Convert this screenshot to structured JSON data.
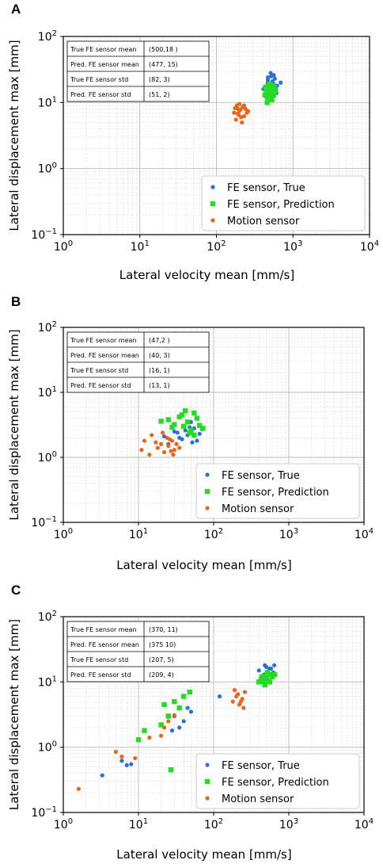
{
  "chart_data": [
    {
      "panel": "A",
      "type": "scatter",
      "xlabel": "Lateral velocity mean [mm/s]",
      "ylabel": "Lateral displacement max [mm]",
      "xscale": "log",
      "yscale": "log",
      "xlim": [
        1,
        10000
      ],
      "ylim": [
        0.1,
        100
      ],
      "grid": true,
      "legend_position": "bottom-right",
      "x_ticks": [
        {
          "base": "10",
          "exp": "0"
        },
        {
          "base": "10",
          "exp": "1"
        },
        {
          "base": "10",
          "exp": "2"
        },
        {
          "base": "10",
          "exp": "3"
        },
        {
          "base": "10",
          "exp": "4"
        }
      ],
      "y_ticks": [
        {
          "base": "10",
          "exp": "−1"
        },
        {
          "base": "10",
          "exp": "0"
        },
        {
          "base": "10",
          "exp": "1"
        },
        {
          "base": "10",
          "exp": "2"
        }
      ],
      "stats_table": [
        [
          "True FE sensor mean",
          "(500,18 )"
        ],
        [
          "Pred. FE sensor mean",
          "(477, 15)"
        ],
        [
          "True FE sensor std",
          "(82, 3)"
        ],
        [
          "Pred. FE sensor std",
          "(51, 2)"
        ]
      ],
      "series": [
        {
          "name": "FE sensor, True",
          "color": "#2a6fdb",
          "marker": "circle",
          "points": [
            [
              430,
              17
            ],
            [
              470,
              22
            ],
            [
              520,
              25
            ],
            [
              560,
              19
            ],
            [
              600,
              16
            ],
            [
              480,
              14
            ],
            [
              510,
              28
            ],
            [
              450,
              12
            ],
            [
              540,
              21
            ],
            [
              580,
              23
            ],
            [
              620,
              18
            ],
            [
              500,
              15
            ],
            [
              470,
              20
            ],
            [
              530,
              13
            ],
            [
              690,
              20
            ],
            [
              410,
              16
            ],
            [
              560,
              26
            ],
            [
              520,
              11
            ],
            [
              610,
              14
            ],
            [
              470,
              24
            ]
          ]
        },
        {
          "name": "FE sensor, Prediction",
          "color": "#22dd22",
          "marker": "square",
          "points": [
            [
              430,
              13
            ],
            [
              460,
              15
            ],
            [
              490,
              17
            ],
            [
              520,
              14
            ],
            [
              550,
              16
            ],
            [
              470,
              12
            ],
            [
              500,
              19
            ],
            [
              530,
              11
            ],
            [
              560,
              13
            ],
            [
              440,
              17
            ],
            [
              480,
              14
            ],
            [
              510,
              16
            ],
            [
              540,
              18
            ],
            [
              460,
              10
            ],
            [
              590,
              15
            ],
            [
              500,
              13
            ],
            [
              470,
              18
            ],
            [
              520,
              12
            ],
            [
              450,
              14
            ],
            [
              570,
              17
            ]
          ]
        },
        {
          "name": "Motion sensor",
          "color": "#e8661c",
          "marker": "circle",
          "points": [
            [
              170,
              7
            ],
            [
              190,
              8
            ],
            [
              210,
              6
            ],
            [
              230,
              9
            ],
            [
              200,
              7.5
            ],
            [
              180,
              5.5
            ],
            [
              220,
              8.5
            ],
            [
              250,
              7
            ],
            [
              195,
              6.5
            ],
            [
              240,
              8
            ],
            [
              185,
              9
            ],
            [
              215,
              5
            ],
            [
              205,
              7.8
            ],
            [
              175,
              8.2
            ],
            [
              230,
              6.2
            ],
            [
              200,
              9.5
            ],
            [
              260,
              7.4
            ],
            [
              190,
              6.8
            ]
          ]
        }
      ]
    },
    {
      "panel": "B",
      "type": "scatter",
      "xlabel": "Lateral velocity mean [mm/s]",
      "ylabel": "Lateral displacement max [mm]",
      "xscale": "log",
      "yscale": "log",
      "xlim": [
        1,
        10000
      ],
      "ylim": [
        0.1,
        100
      ],
      "grid": true,
      "legend_position": "bottom-right",
      "x_ticks": [
        {
          "base": "10",
          "exp": "0"
        },
        {
          "base": "10",
          "exp": "1"
        },
        {
          "base": "10",
          "exp": "2"
        },
        {
          "base": "10",
          "exp": "3"
        },
        {
          "base": "10",
          "exp": "4"
        }
      ],
      "y_ticks": [
        {
          "base": "10",
          "exp": "−1"
        },
        {
          "base": "10",
          "exp": "0"
        },
        {
          "base": "10",
          "exp": "1"
        },
        {
          "base": "10",
          "exp": "2"
        }
      ],
      "stats_table": [
        [
          "True FE sensor mean",
          "(47,2 )"
        ],
        [
          "Pred. FE sensor mean",
          "(40, 3)"
        ],
        [
          "True FE sensor std",
          "(16, 1)"
        ],
        [
          "Pred. FE sensor std",
          "(13, 1)"
        ]
      ],
      "series": [
        {
          "name": "FE sensor, True",
          "color": "#2a6fdb",
          "marker": "circle",
          "points": [
            [
              30,
              2.5
            ],
            [
              40,
              3
            ],
            [
              45,
              2.2
            ],
            [
              55,
              2.8
            ],
            [
              60,
              1.8
            ],
            [
              35,
              2
            ],
            [
              50,
              3.5
            ],
            [
              25,
              1.6
            ],
            [
              42,
              2.6
            ],
            [
              65,
              2.3
            ],
            [
              38,
              1.9
            ],
            [
              48,
              2.9
            ],
            [
              22,
              2.1
            ],
            [
              52,
              1.7
            ],
            [
              70,
              2.7
            ],
            [
              33,
              2.4
            ]
          ]
        },
        {
          "name": "FE sensor, Prediction",
          "color": "#22dd22",
          "marker": "square",
          "points": [
            [
              25,
              3.8
            ],
            [
              35,
              4.2
            ],
            [
              45,
              3.5
            ],
            [
              55,
              4.8
            ],
            [
              40,
              3
            ],
            [
              30,
              3.2
            ],
            [
              50,
              2.6
            ],
            [
              60,
              4
            ],
            [
              20,
              3.6
            ],
            [
              42,
              5.2
            ],
            [
              65,
              3.1
            ],
            [
              48,
              2.4
            ],
            [
              38,
              4.5
            ],
            [
              28,
              2.9
            ],
            [
              55,
              2.2
            ],
            [
              72,
              2.8
            ]
          ]
        },
        {
          "name": "Motion sensor",
          "color": "#e8661c",
          "marker": "circle",
          "points": [
            [
              12,
              1.8
            ],
            [
              15,
              2.2
            ],
            [
              18,
              1.4
            ],
            [
              20,
              1.6
            ],
            [
              22,
              1.2
            ],
            [
              25,
              1.5
            ],
            [
              28,
              1.8
            ],
            [
              30,
              1.3
            ],
            [
              14,
              1.1
            ],
            [
              26,
              1.9
            ],
            [
              32,
              1.6
            ],
            [
              24,
              2
            ],
            [
              17,
              1.7
            ],
            [
              29,
              1.1
            ],
            [
              35,
              1.4
            ],
            [
              21,
              2.4
            ],
            [
              11,
              1.3
            ],
            [
              27,
              1.25
            ]
          ]
        }
      ]
    },
    {
      "panel": "C",
      "type": "scatter",
      "xlabel": "Lateral velocity mean [mm/s]",
      "ylabel": "Lateral displacement max [mm]",
      "xscale": "log",
      "yscale": "log",
      "xlim": [
        1,
        10000
      ],
      "ylim": [
        0.1,
        100
      ],
      "grid": true,
      "legend_position": "bottom-right",
      "x_ticks": [
        {
          "base": "10",
          "exp": "0"
        },
        {
          "base": "10",
          "exp": "1"
        },
        {
          "base": "10",
          "exp": "2"
        },
        {
          "base": "10",
          "exp": "3"
        },
        {
          "base": "10",
          "exp": "4"
        }
      ],
      "y_ticks": [
        {
          "base": "10",
          "exp": "−1"
        },
        {
          "base": "10",
          "exp": "0"
        },
        {
          "base": "10",
          "exp": "1"
        },
        {
          "base": "10",
          "exp": "2"
        }
      ],
      "stats_table": [
        [
          "True FE sensor mean",
          "(370, 11)"
        ],
        [
          "Pred. FE sensor mean",
          "(375 10)"
        ],
        [
          "True FE sensor std",
          "(207, 5)"
        ],
        [
          "Pred. FE sensor std",
          "(209, 4)"
        ]
      ],
      "series": [
        {
          "name": "FE sensor, True",
          "color": "#2a6fdb",
          "marker": "circle",
          "points": [
            [
              3.3,
              0.37
            ],
            [
              6,
              0.62
            ],
            [
              7,
              0.53
            ],
            [
              8,
              0.55
            ],
            [
              30,
              3
            ],
            [
              40,
              2.5
            ],
            [
              45,
              4
            ],
            [
              50,
              3.5
            ],
            [
              35,
              2
            ],
            [
              28,
              1.8
            ],
            [
              120,
              6
            ],
            [
              400,
              15
            ],
            [
              500,
              17
            ],
            [
              600,
              13
            ],
            [
              450,
              12
            ],
            [
              550,
              16
            ],
            [
              480,
              18
            ],
            [
              520,
              11
            ],
            [
              620,
              14
            ],
            [
              430,
              10
            ],
            [
              580,
              16
            ],
            [
              470,
              13
            ],
            [
              640,
              18
            ]
          ]
        },
        {
          "name": "FE sensor, Prediction",
          "color": "#22dd22",
          "marker": "square",
          "points": [
            [
              10,
              1.3
            ],
            [
              12,
              1.8
            ],
            [
              20,
              2.2
            ],
            [
              25,
              3
            ],
            [
              30,
              5
            ],
            [
              40,
              6
            ],
            [
              48,
              7
            ],
            [
              22,
              4.5
            ],
            [
              35,
              4
            ],
            [
              27,
              0.45
            ],
            [
              400,
              10
            ],
            [
              450,
              12
            ],
            [
              500,
              11
            ],
            [
              550,
              13
            ],
            [
              480,
              9
            ],
            [
              520,
              14
            ],
            [
              430,
              11
            ],
            [
              600,
              12
            ],
            [
              470,
              10
            ],
            [
              510,
              13
            ],
            [
              560,
              10
            ],
            [
              440,
              12
            ],
            [
              650,
              13
            ]
          ]
        },
        {
          "name": "Motion sensor",
          "color": "#e8661c",
          "marker": "circle",
          "points": [
            [
              1.6,
              0.23
            ],
            [
              5,
              0.85
            ],
            [
              6,
              0.72
            ],
            [
              9,
              0.68
            ],
            [
              14,
              1.4
            ],
            [
              20,
              1.5
            ],
            [
              22,
              2
            ],
            [
              25,
              2.5
            ],
            [
              30,
              3.1
            ],
            [
              180,
              5
            ],
            [
              200,
              6
            ],
            [
              220,
              4.5
            ],
            [
              240,
              5.5
            ],
            [
              260,
              7
            ],
            [
              210,
              6.5
            ],
            [
              230,
              5
            ],
            [
              190,
              7.5
            ],
            [
              250,
              4
            ]
          ]
        }
      ]
    }
  ]
}
